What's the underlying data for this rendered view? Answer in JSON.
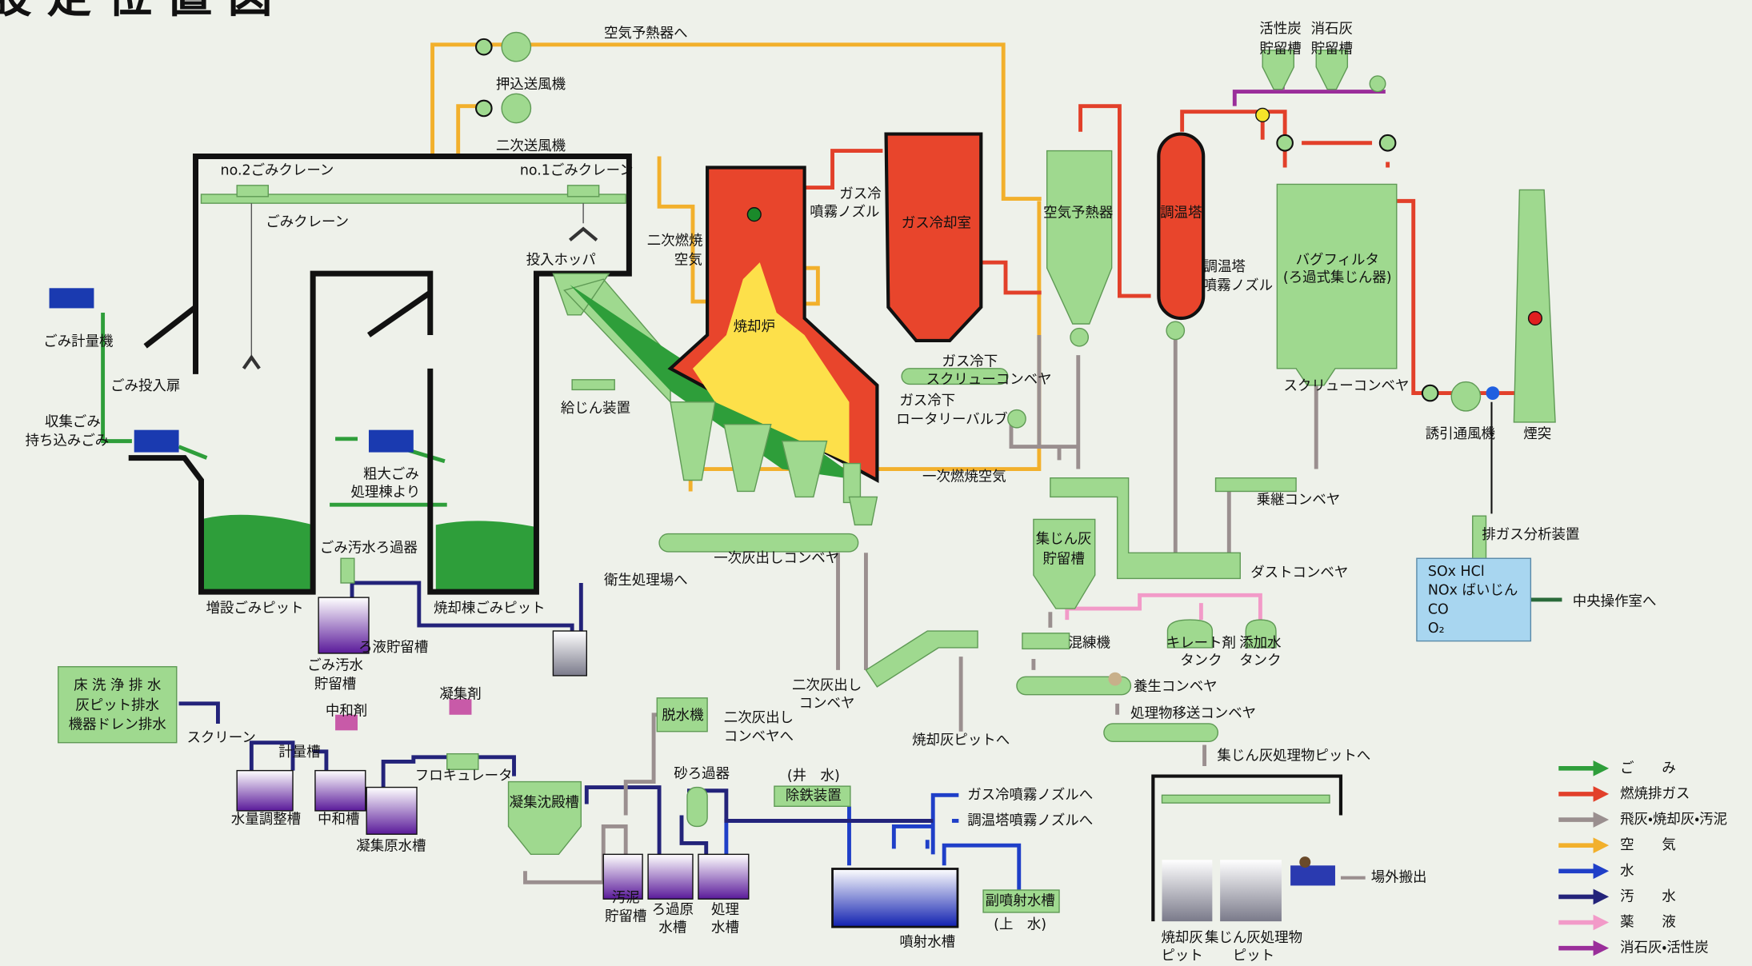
{
  "title": "設 定 位 置 図",
  "labels": [
    "空気予熱器へ",
    "押込送風機",
    "二次送風機",
    "no.2ごみクレーン",
    "no.1ごみクレーン",
    "ごみクレーン",
    "ごみ計量機",
    "ごみ投入扉",
    "収集ごみ",
    "持ち込みごみ",
    "粗大ごみ",
    "処理棟より",
    "投入ホッパ",
    "二次燃焼",
    "空気",
    "ガス冷",
    "噴霧ノズル",
    "ガス冷却室",
    "焼却炉",
    "給じん装置",
    "ガス冷下",
    "スクリューコンベヤ",
    "ガス冷下",
    "ロータリーバルブ",
    "一次燃焼空気",
    "一次灰出しコンベヤ",
    "ごみ汚水ろ過器",
    "増設ごみピット",
    "焼却棟ごみピット",
    "衛生処理場へ",
    "ろ液貯留槽",
    "ごみ汚水",
    "貯留槽",
    "床 洗 浄 排 水",
    "灰ピット排水",
    "機器ドレン排水",
    "中和剤",
    "凝集剤",
    "スクリーン",
    "計量槽",
    "フロキュレータ",
    "水量調整槽",
    "中和槽",
    "凝集原水槽",
    "凝集沈殿槽",
    "脱水機",
    "二次灰出し",
    "コンベヤへ",
    "砂ろ過器",
    "(井　水)",
    "除鉄装置",
    "汚泥",
    "貯留槽",
    "ろ過原",
    "水槽",
    "処理",
    "水槽",
    "噴射水槽",
    "二次灰出し",
    "コンベヤ",
    "焼却灰ピットへ",
    "ガス冷噴霧ノズルへ",
    "調温塔噴霧ノズルへ",
    "副噴射水槽",
    "(上　水)",
    "空気予熱器",
    "調温塔",
    "調温塔",
    "噴霧ノズル",
    "活性炭",
    "貯留槽",
    "消石灰",
    "貯留槽",
    "バグフィルタ",
    "(ろ過式集じん器)",
    "スクリューコンベヤ",
    "誘引通風機",
    "煙突",
    "乗継コンベヤ",
    "排ガス分析装置",
    "中央操作室へ",
    "集じん灰",
    "貯留槽",
    "ダストコンベヤ",
    "混練機",
    "キレート剤",
    "タンク",
    "添加水",
    "タンク",
    "養生コンベヤ",
    "処理物移送コンベヤ",
    "集じん灰処理物ピットへ",
    "場外搬出",
    "焼却灰",
    "ピット",
    "集じん灰処理物",
    "ピット"
  ],
  "analyzer": [
    "SOx  HCl",
    "NOx  ばいじん",
    "CO",
    "O₂"
  ],
  "legend": [
    {
      "label": "ご　　み",
      "color": "#2e9e3a"
    },
    {
      "label": "燃焼排ガス",
      "color": "#e2402a"
    },
    {
      "label": "飛灰・焼却灰・汚泥",
      "color": "#9a8f8f"
    },
    {
      "label": "空　　気",
      "color": "#f2b02c"
    },
    {
      "label": "水",
      "color": "#1f3fc8"
    },
    {
      "label": "汚　　水",
      "color": "#23237a"
    },
    {
      "label": "薬　　液",
      "color": "#f29ac8"
    },
    {
      "label": "消石灰・活性炭",
      "color": "#9a2e9a"
    }
  ]
}
